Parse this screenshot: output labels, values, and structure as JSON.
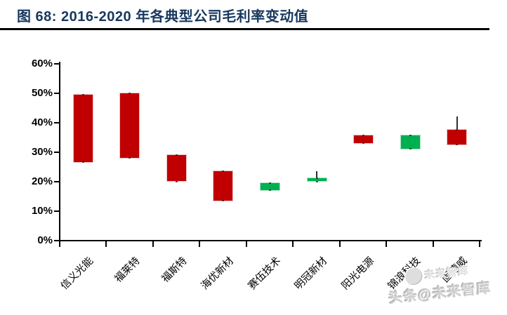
{
  "header": {
    "title": "图 68:  2016-2020 年各典型公司毛利率变动值"
  },
  "watermark": {
    "upper_text": "未来智库",
    "main_text": "头条@未来智库"
  },
  "chart_data": {
    "type": "bar",
    "subtype": "floating-range-candlestick",
    "title": "2016-2020 年各典型公司毛利率变动值",
    "xlabel": "",
    "ylabel": "",
    "ylim": [
      0,
      60
    ],
    "y_tick_values": [
      0,
      10,
      20,
      30,
      40,
      50,
      60
    ],
    "y_tick_labels": [
      "0%",
      "10%",
      "20%",
      "30%",
      "40%",
      "50%",
      "60%"
    ],
    "grid": false,
    "legend": false,
    "colors": {
      "decrease": "#C00000",
      "increase": "#00B050"
    },
    "categories": [
      "信义光能",
      "福莱特",
      "福斯特",
      "海优新材",
      "赛伍技术",
      "明冠新材",
      "阳光电源",
      "锦浪科技",
      "固德威"
    ],
    "bars": [
      {
        "label": "信义光能",
        "low": 26.5,
        "high": 49.5,
        "direction": "decrease"
      },
      {
        "label": "福莱特",
        "low": 28,
        "high": 50,
        "direction": "decrease"
      },
      {
        "label": "福斯特",
        "low": 20,
        "high": 29,
        "direction": "decrease"
      },
      {
        "label": "海优新材",
        "low": 13.5,
        "high": 23.5,
        "direction": "decrease"
      },
      {
        "label": "赛伍技术",
        "low": 17,
        "high": 19.5,
        "direction": "increase"
      },
      {
        "label": "明冠新材",
        "low": 20,
        "high": 21,
        "direction": "increase",
        "whisker_high": 23.5
      },
      {
        "label": "阳光电源",
        "low": 33,
        "high": 35.5,
        "direction": "decrease"
      },
      {
        "label": "锦浪科技",
        "low": 31,
        "high": 35.5,
        "direction": "increase"
      },
      {
        "label": "固德威",
        "low": 32.5,
        "high": 37.5,
        "direction": "decrease",
        "whisker_high": 42
      }
    ]
  }
}
